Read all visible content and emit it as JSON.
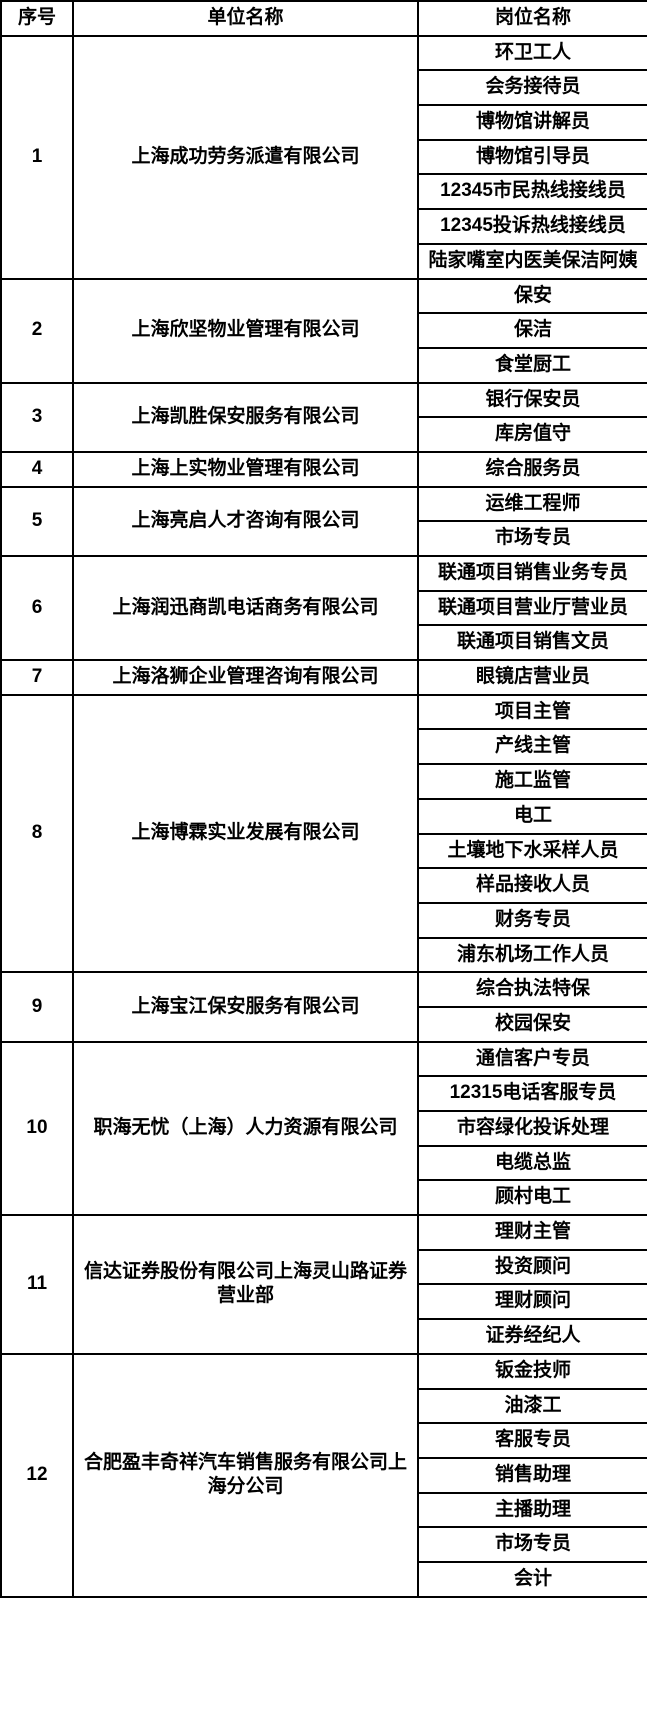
{
  "headers": [
    "序号",
    "单位名称",
    "岗位名称"
  ],
  "colors": {
    "border": "#000000",
    "background": "#ffffff",
    "text": "#000000"
  },
  "font": {
    "header_size": 19,
    "cell_size": 19,
    "weight": "bold"
  },
  "rows": [
    {
      "no": "1",
      "company": "上海成功劳务派遣有限公司",
      "positions": [
        "环卫工人",
        "会务接待员",
        "博物馆讲解员",
        "博物馆引导员",
        "12345市民热线接线员",
        "12345投诉热线接线员",
        "陆家嘴室内医美保洁阿姨"
      ]
    },
    {
      "no": "2",
      "company": "上海欣坚物业管理有限公司",
      "positions": [
        "保安",
        "保洁",
        "食堂厨工"
      ]
    },
    {
      "no": "3",
      "company": "上海凯胜保安服务有限公司",
      "positions": [
        "银行保安员",
        "库房值守"
      ]
    },
    {
      "no": "4",
      "company": "上海上实物业管理有限公司",
      "positions": [
        "综合服务员"
      ]
    },
    {
      "no": "5",
      "company": "上海亮启人才咨询有限公司",
      "positions": [
        "运维工程师",
        "市场专员"
      ]
    },
    {
      "no": "6",
      "company": "上海润迅商凯电话商务有限公司",
      "positions": [
        "联通项目销售业务专员",
        "联通项目营业厅营业员",
        "联通项目销售文员"
      ]
    },
    {
      "no": "7",
      "company": "上海洛狮企业管理咨询有限公司",
      "positions": [
        "眼镜店营业员"
      ]
    },
    {
      "no": "8",
      "company": "上海博霖实业发展有限公司",
      "positions": [
        "项目主管",
        "产线主管",
        "施工监管",
        "电工",
        "土壤地下水采样人员",
        "样品接收人员",
        "财务专员",
        "浦东机场工作人员"
      ]
    },
    {
      "no": "9",
      "company": "上海宝江保安服务有限公司",
      "positions": [
        "综合执法特保",
        "校园保安"
      ]
    },
    {
      "no": "10",
      "company": "职海无忧（上海）人力资源有限公司",
      "positions": [
        "通信客户专员",
        "12315电话客服专员",
        "市容绿化投诉处理",
        "电缆总监",
        "顾村电工"
      ]
    },
    {
      "no": "11",
      "company": "信达证券股份有限公司上海灵山路证券营业部",
      "positions": [
        "理财主管",
        "投资顾问",
        "理财顾问",
        "证券经纪人"
      ]
    },
    {
      "no": "12",
      "company": "合肥盈丰奇祥汽车销售服务有限公司上海分公司",
      "positions": [
        "钣金技师",
        "油漆工",
        "客服专员",
        "销售助理",
        "主播助理",
        "市场专员",
        "会计"
      ]
    }
  ]
}
